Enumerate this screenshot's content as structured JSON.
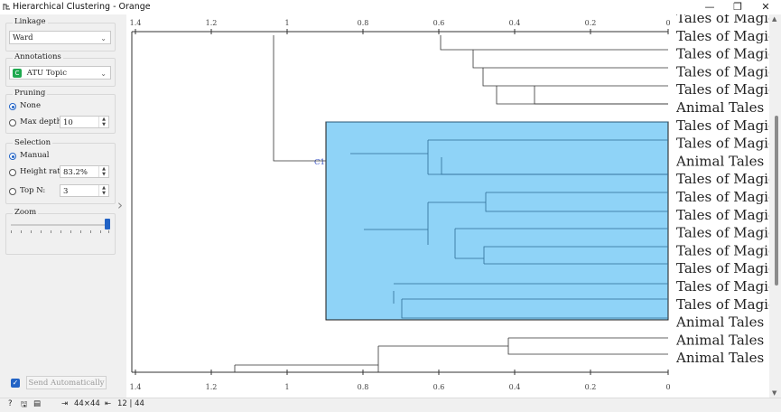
{
  "window": {
    "title": "Hierarchical Clustering - Orange",
    "minimize": "—",
    "maximize": "❐",
    "close": "✕"
  },
  "controls": {
    "linkage": {
      "title": "Linkage",
      "value": "Ward"
    },
    "annotations": {
      "title": "Annotations",
      "badge": "C",
      "value": "ATU Topic"
    },
    "pruning": {
      "title": "Pruning",
      "none_label": "None",
      "maxdepth_label": "Max depth:",
      "maxdepth_value": "10",
      "selected": "None"
    },
    "selection": {
      "title": "Selection",
      "manual_label": "Manual",
      "height_label": "Height ratio:",
      "height_value": "83.2%",
      "topn_label": "Top N:",
      "topn_value": "3",
      "selected": "Manual"
    },
    "zoom": {
      "title": "Zoom",
      "level": 1.0
    },
    "send": {
      "label": "Send Automatically",
      "checked": true
    },
    "collapse_icon": "chevron-right-icon"
  },
  "axis": {
    "ticks": [
      "1.4",
      "1.2",
      "1",
      "0.8",
      "0.6",
      "0.4",
      "0.2",
      "0"
    ]
  },
  "cluster_label": "C1",
  "leaves": [
    "Tales of Magic",
    "Tales of Magic",
    "Tales of Magic",
    "Tales of Magic",
    "Tales of Magic",
    "Animal Tales",
    "Tales of Magic",
    "Tales of Magic",
    "Animal Tales",
    "Tales of Magic",
    "Tales of Magic",
    "Tales of Magic",
    "Tales of Magic",
    "Tales of Magic",
    "Tales of Magic",
    "Tales of Magic",
    "Tales of Magic",
    "Animal Tales",
    "Animal Tales",
    "Animal Tales"
  ],
  "status": {
    "input": "44×44",
    "output": "12 | 44"
  },
  "colors": {
    "selection": "#8fd3f7",
    "accent": "#2263c5",
    "cluster_label": "#3a55c8"
  }
}
